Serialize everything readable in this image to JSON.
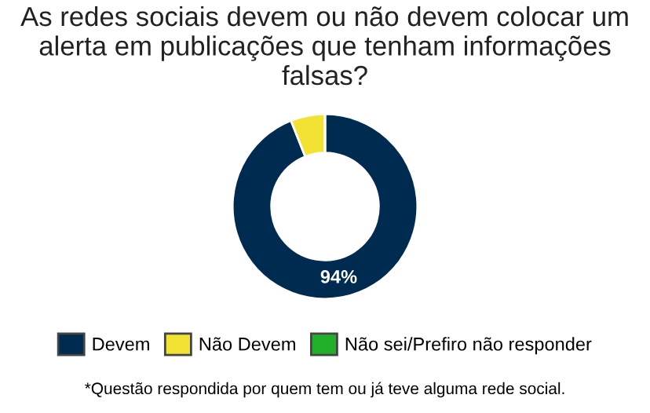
{
  "chart_data": {
    "type": "donut",
    "title": "As redes sociais devem ou não devem colocar um alerta em publicações que tenham informações falsas?",
    "categories": [
      "Devem",
      "Não Devem",
      "Não sei/Prefiro não responder"
    ],
    "values": [
      94,
      6,
      0
    ],
    "colors": [
      "#002b50",
      "#f2e234",
      "#22b02a"
    ],
    "value_labels": [
      "94%",
      null,
      null
    ],
    "legend": "bottom",
    "annotations": [
      "*Questão respondida por quem tem ou já teve alguma rede social."
    ]
  }
}
